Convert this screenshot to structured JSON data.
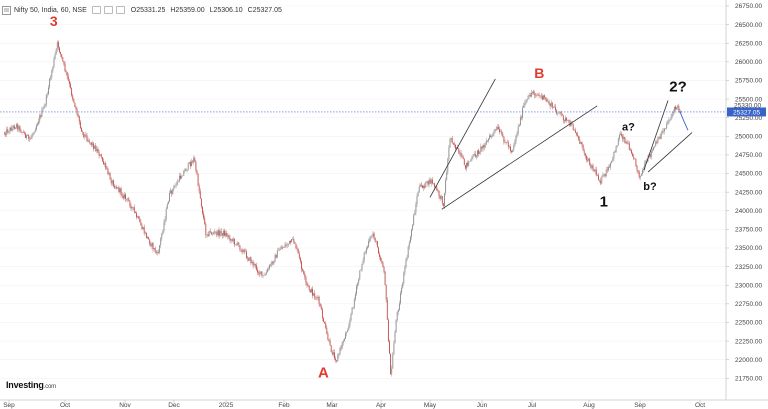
{
  "header": {
    "symbol": "Nifty 50, India, 60, NSE",
    "open": "O25331.25",
    "high": "H25359.00",
    "low": "L25306.10",
    "close": "C25327.05"
  },
  "logo": {
    "name": "Investing",
    "suffix": ".com"
  },
  "colors": {
    "up": "#8c8c8c",
    "down": "#c0504d",
    "wave_red": "#e23b2e",
    "wave_black": "#111111",
    "price_line": "#3a63c9",
    "trend_line": "#333333"
  },
  "chart_data": {
    "type": "candlestick",
    "x_tick_labels": [
      "Sep",
      "Oct",
      "Nov",
      "Dec",
      "2025",
      "Feb",
      "Mar",
      "Apr",
      "May",
      "Jun",
      "Jul",
      "Aug",
      "Sep",
      "Oct"
    ],
    "y_tick_labels": [
      21750,
      22000,
      22250,
      22500,
      22750,
      23000,
      23250,
      23500,
      23750,
      24000,
      24250,
      24500,
      24750,
      25000,
      25250,
      25500,
      25750,
      26000,
      26250,
      26500,
      26750
    ],
    "ylim": [
      21600,
      26800
    ],
    "last_price": "25327.05",
    "price_overlay_label": "25330.00",
    "approximate_path": [
      {
        "x": "2024-08-28",
        "y": 25050
      },
      {
        "x": "2024-09-05",
        "y": 25150
      },
      {
        "x": "2024-09-12",
        "y": 24950
      },
      {
        "x": "2024-09-20",
        "y": 25400
      },
      {
        "x": "2024-09-27",
        "y": 26250
      },
      {
        "x": "2024-10-02",
        "y": 25800
      },
      {
        "x": "2024-10-10",
        "y": 25050
      },
      {
        "x": "2024-10-18",
        "y": 24800
      },
      {
        "x": "2024-10-25",
        "y": 24400
      },
      {
        "x": "2024-11-04",
        "y": 24100
      },
      {
        "x": "2024-11-13",
        "y": 23700
      },
      {
        "x": "2024-11-21",
        "y": 23400
      },
      {
        "x": "2024-11-28",
        "y": 24200
      },
      {
        "x": "2024-12-06",
        "y": 24500
      },
      {
        "x": "2024-12-13",
        "y": 24700
      },
      {
        "x": "2024-12-20",
        "y": 23700
      },
      {
        "x": "2024-12-31",
        "y": 23700
      },
      {
        "x": "2025-01-09",
        "y": 23500
      },
      {
        "x": "2025-01-21",
        "y": 23100
      },
      {
        "x": "2025-01-30",
        "y": 23500
      },
      {
        "x": "2025-02-07",
        "y": 23600
      },
      {
        "x": "2025-02-14",
        "y": 23000
      },
      {
        "x": "2025-02-21",
        "y": 22800
      },
      {
        "x": "2025-02-28",
        "y": 22150
      },
      {
        "x": "2025-03-04",
        "y": 22000
      },
      {
        "x": "2025-03-12",
        "y": 22500
      },
      {
        "x": "2025-03-21",
        "y": 23400
      },
      {
        "x": "2025-03-27",
        "y": 23700
      },
      {
        "x": "2025-04-03",
        "y": 23200
      },
      {
        "x": "2025-04-07",
        "y": 21750
      },
      {
        "x": "2025-04-10",
        "y": 22500
      },
      {
        "x": "2025-04-17",
        "y": 23400
      },
      {
        "x": "2025-04-24",
        "y": 24300
      },
      {
        "x": "2025-05-02",
        "y": 24400
      },
      {
        "x": "2025-05-09",
        "y": 24100
      },
      {
        "x": "2025-05-13",
        "y": 25000
      },
      {
        "x": "2025-05-22",
        "y": 24600
      },
      {
        "x": "2025-05-30",
        "y": 24800
      },
      {
        "x": "2025-06-10",
        "y": 25100
      },
      {
        "x": "2025-06-19",
        "y": 24800
      },
      {
        "x": "2025-06-26",
        "y": 25400
      },
      {
        "x": "2025-07-01",
        "y": 25600
      },
      {
        "x": "2025-07-08",
        "y": 25500
      },
      {
        "x": "2025-07-16",
        "y": 25300
      },
      {
        "x": "2025-07-24",
        "y": 25100
      },
      {
        "x": "2025-07-31",
        "y": 24700
      },
      {
        "x": "2025-08-08",
        "y": 24400
      },
      {
        "x": "2025-08-14",
        "y": 24600
      },
      {
        "x": "2025-08-20",
        "y": 25050
      },
      {
        "x": "2025-08-27",
        "y": 24800
      },
      {
        "x": "2025-09-01",
        "y": 24450
      },
      {
        "x": "2025-09-05",
        "y": 24700
      },
      {
        "x": "2025-09-12",
        "y": 25050
      },
      {
        "x": "2025-09-19",
        "y": 25400
      },
      {
        "x": "2025-09-22",
        "y": 25330
      }
    ],
    "annotations": [
      {
        "text": "3",
        "color": "red"
      },
      {
        "text": "A",
        "color": "red"
      },
      {
        "text": "B",
        "color": "red"
      },
      {
        "text": "1",
        "color": "black"
      },
      {
        "text": "a?",
        "color": "black"
      },
      {
        "text": "b?",
        "color": "black"
      },
      {
        "text": "2?",
        "color": "black"
      }
    ]
  }
}
